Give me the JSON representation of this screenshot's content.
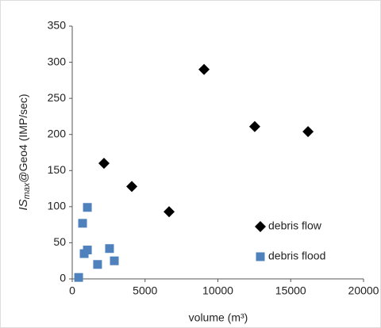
{
  "chart_data": {
    "type": "scatter",
    "x_label": "volume (m³)",
    "y_label": {
      "main": "IS",
      "sub": "max",
      "rest": "@Geo4 (IMP/sec)"
    },
    "xlim": [
      0,
      20000
    ],
    "xticks": [
      0,
      5000,
      10000,
      15000,
      20000
    ],
    "ylim": [
      0,
      350
    ],
    "yticks": [
      0,
      50,
      100,
      150,
      200,
      250,
      300,
      350
    ],
    "grid": false,
    "legend": "lower right",
    "series": [
      {
        "name": "debris flow",
        "color": "#000000",
        "marker": "diamond",
        "x": [
          2180,
          4090,
          6650,
          9050,
          12530,
          16190
        ],
        "values": [
          160,
          128,
          93,
          290,
          211,
          204
        ]
      },
      {
        "name": "debris flood",
        "color": "#4f81bd",
        "marker": "square",
        "x": [
          440,
          710,
          820,
          1040,
          1040,
          1740,
          2560,
          2890
        ],
        "values": [
          2,
          77,
          35,
          99,
          40,
          20,
          42,
          25
        ]
      }
    ]
  }
}
